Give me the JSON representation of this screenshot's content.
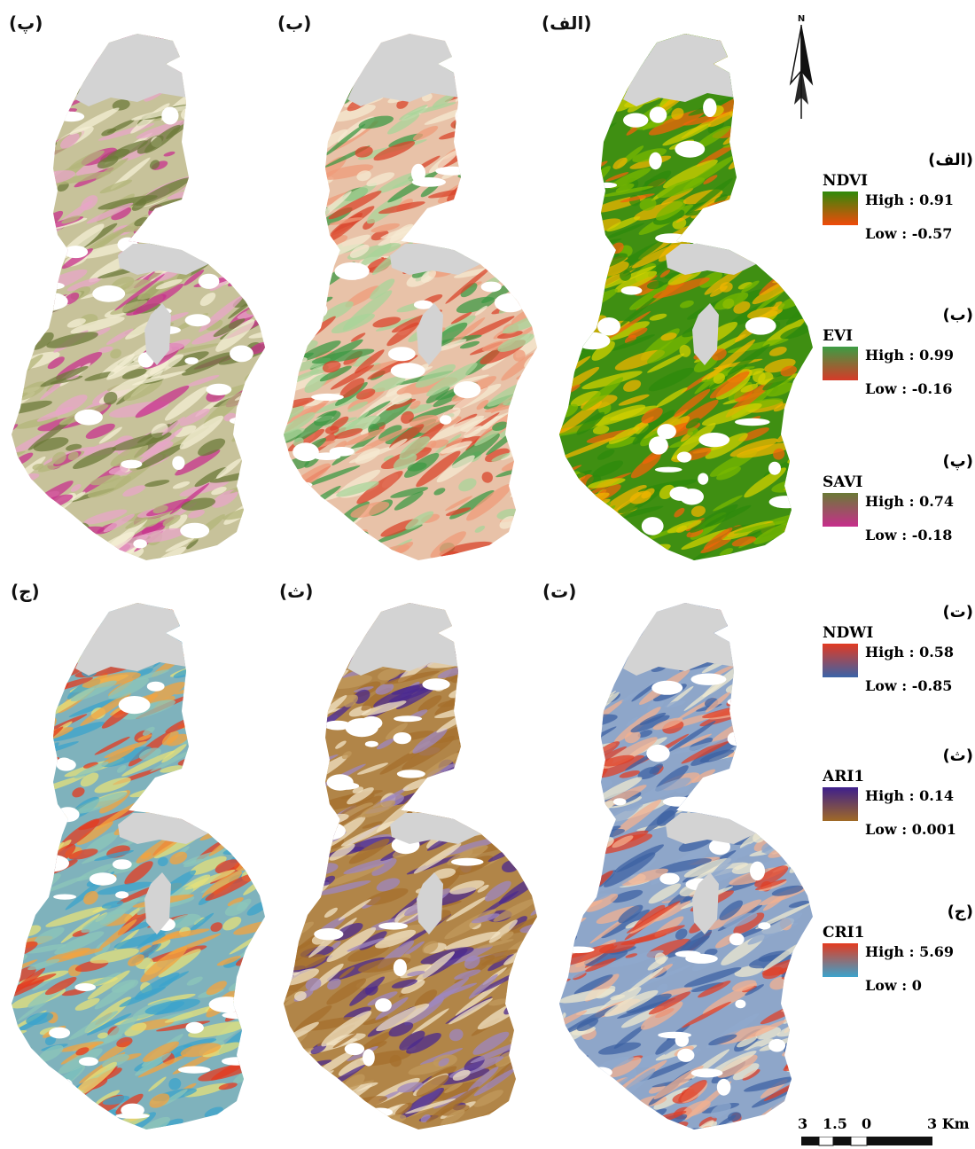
{
  "panels": [
    {
      "id": "alef",
      "label": "(الف)",
      "index": "NDVI",
      "colors": [
        "#f0640a",
        "#f0b400",
        "#d2d000",
        "#7ab800",
        "#2e8a0c"
      ],
      "dominant": "#3f8f12"
    },
    {
      "id": "be",
      "label": "(ب)",
      "index": "EVI",
      "colors": [
        "#d9462c",
        "#ef9b7a",
        "#f6ead2",
        "#a8d49a",
        "#3e9a45"
      ],
      "dominant": "#e8c2a8"
    },
    {
      "id": "pe",
      "label": "(پ)",
      "index": "SAVI",
      "colors": [
        "#c8328e",
        "#e8a6c8",
        "#f4efd4",
        "#b3b57a",
        "#6c7a3a"
      ],
      "dominant": "#c7c29a"
    },
    {
      "id": "te",
      "label": "(ت)",
      "index": "NDWI",
      "colors": [
        "#3d62a3",
        "#8fa8cc",
        "#eee8cf",
        "#f2b090",
        "#df4028"
      ],
      "dominant": "#8ea6c9"
    },
    {
      "id": "se",
      "label": "(ث)",
      "index": "ARI1",
      "colors": [
        "#a66f2c",
        "#c29a5c",
        "#f2e3c4",
        "#9d87c2",
        "#4b2a8f"
      ],
      "dominant": "#b18548"
    },
    {
      "id": "jim",
      "label": "(ج)",
      "index": "CRI1",
      "colors": [
        "#3ba3cc",
        "#8cc6b9",
        "#e6e07a",
        "#f4a33e",
        "#e43a1f"
      ],
      "dominant": "#7fb2bc"
    }
  ],
  "legend": [
    {
      "letter": "(الف)",
      "title": "NDVI",
      "high": "High : 0.91",
      "low": "Low : -0.57",
      "ramp_top": "#2f8a0a",
      "ramp_bottom": "#f04a0a"
    },
    {
      "letter": "(ب)",
      "title": "EVI",
      "high": "High : 0.99",
      "low": "Low : -0.16",
      "ramp_top": "#3c9d44",
      "ramp_bottom": "#d63a28"
    },
    {
      "letter": "(پ)",
      "title": "SAVI",
      "high": "High : 0.74",
      "low": "Low : -0.18",
      "ramp_top": "#6a7a36",
      "ramp_bottom": "#c72e8c"
    },
    {
      "letter": "(ت)",
      "title": "NDWI",
      "high": "High : 0.58",
      "low": "Low : -0.85",
      "ramp_top": "#e23a22",
      "ramp_bottom": "#3a63a8"
    },
    {
      "letter": "(ث)",
      "title": "ARI1",
      "high": "High : 0.14",
      "low": "Low : 0.001",
      "ramp_top": "#3e1f8c",
      "ramp_bottom": "#a06a26"
    },
    {
      "letter": "(ج)",
      "title": "CRI1",
      "high": "High : 5.69",
      "low": "Low : 0",
      "ramp_top": "#e43a1f",
      "ramp_bottom": "#3ba3cc"
    }
  ],
  "north": {
    "label": "N"
  },
  "scale": {
    "labels": [
      "3",
      "1.5",
      "0",
      "3 Km"
    ]
  },
  "colors": {
    "nodata": "#d3d3d3",
    "ink": "#111111"
  }
}
